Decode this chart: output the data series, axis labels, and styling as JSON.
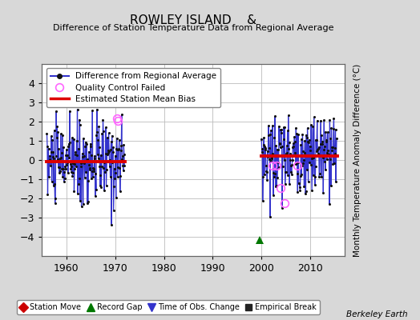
{
  "title": "ROWLEY ISLAND    &",
  "subtitle": "Difference of Station Temperature Data from Regional Average",
  "ylabel": "Monthly Temperature Anomaly Difference (°C)",
  "ylim": [
    -5,
    5
  ],
  "xlim": [
    1955,
    2017
  ],
  "xticks": [
    1960,
    1970,
    1980,
    1990,
    2000,
    2010
  ],
  "yticks": [
    -4,
    -3,
    -2,
    -1,
    0,
    1,
    2,
    3,
    4
  ],
  "background_color": "#d8d8d8",
  "plot_bg_color": "#ffffff",
  "grid_color": "#bbbbbb",
  "segment1_xstart": 1956.0,
  "segment1_xend": 1972.0,
  "segment1_bias": -0.08,
  "segment2_xstart": 2000.0,
  "segment2_xend": 2015.5,
  "segment2_bias": 0.22,
  "line_color": "#3333cc",
  "dot_color": "#111111",
  "bias_color": "#dd0000",
  "qc_color": "#ff66ff",
  "green_triangle_x": 1999.7,
  "green_triangle_y": -4.15,
  "qc_points_1": [
    [
      1970.3,
      2.15
    ],
    [
      1970.6,
      2.05
    ]
  ],
  "qc_points_2": [
    [
      2002.3,
      -0.3
    ],
    [
      2003.1,
      -0.28
    ],
    [
      2003.9,
      -1.45
    ],
    [
      2007.3,
      -0.28
    ],
    [
      2004.7,
      -2.25
    ]
  ],
  "seed1": 10,
  "seed2": 20,
  "bias1_std": 1.1,
  "bias2_std": 1.0
}
